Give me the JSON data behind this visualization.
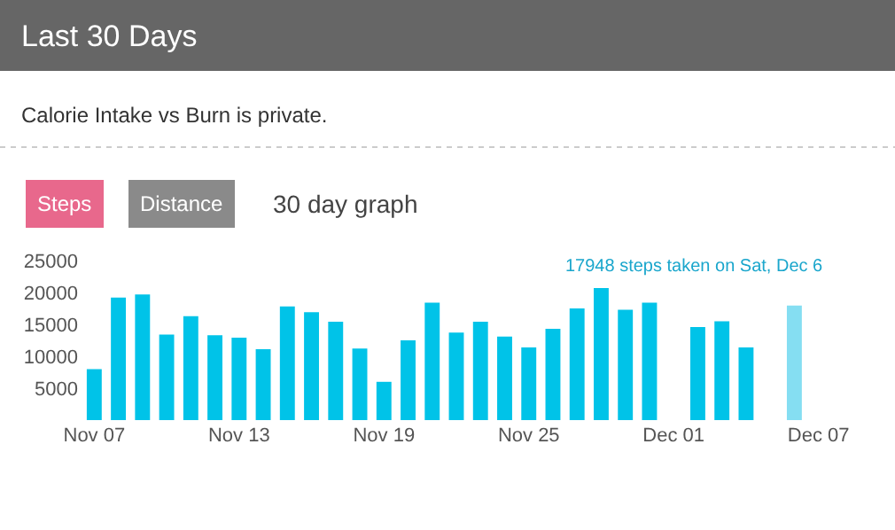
{
  "chart_data": {
    "type": "bar",
    "title": "Last 30 Days",
    "subtitle": "Calorie Intake vs Burn is private.",
    "categories": [
      "Nov 07",
      null,
      null,
      null,
      null,
      null,
      "Nov 13",
      null,
      null,
      null,
      null,
      null,
      "Nov 19",
      null,
      null,
      null,
      null,
      null,
      "Nov 25",
      null,
      null,
      null,
      null,
      null,
      "Dec 01",
      null,
      null,
      null,
      null,
      null,
      "Dec 07"
    ],
    "values": [
      8000,
      19200,
      19700,
      13400,
      16300,
      13300,
      12900,
      11100,
      17800,
      16900,
      15400,
      11200,
      6000,
      12500,
      18400,
      13700,
      15400,
      13100,
      11400,
      14300,
      17500,
      20700,
      17300,
      18400,
      null,
      14600,
      15500,
      11400,
      null,
      17948,
      null
    ],
    "colors": [
      "#00c3e8",
      "#00c3e8",
      "#00c3e8",
      "#00c3e8",
      "#00c3e8",
      "#00c3e8",
      "#00c3e8",
      "#00c3e8",
      "#00c3e8",
      "#00c3e8",
      "#00c3e8",
      "#00c3e8",
      "#00c3e8",
      "#00c3e8",
      "#00c3e8",
      "#00c3e8",
      "#00c3e8",
      "#00c3e8",
      "#00c3e8",
      "#00c3e8",
      "#00c3e8",
      "#00c3e8",
      "#00c3e8",
      "#00c3e8",
      "#00c3e8",
      "#00c3e8",
      "#00c3e8",
      "#00c3e8",
      "#00c3e8",
      "#85def2",
      "#00c3e8"
    ],
    "ylim": [
      0,
      25000
    ],
    "yticks": [
      5000,
      10000,
      15000,
      20000,
      25000
    ],
    "annotations": [
      "Steps",
      "Distance",
      "30 day graph",
      "17948 steps taken on Sat, Dec 6"
    ]
  }
}
